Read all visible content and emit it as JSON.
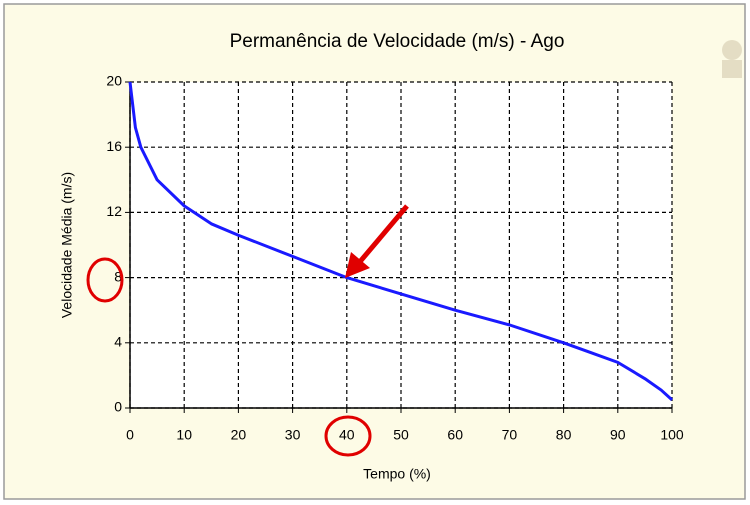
{
  "chart_data": {
    "type": "line",
    "title": "Permanência de Velocidade (m/s) - Ago",
    "x_label": "Tempo (%)",
    "y_label": "Velocidade Média (m/s)",
    "x": [
      0,
      1,
      2,
      5,
      10,
      15,
      20,
      30,
      40,
      50,
      60,
      70,
      80,
      85,
      90,
      95,
      98,
      100
    ],
    "values": [
      20,
      17.2,
      16,
      14,
      12.4,
      11.3,
      10.6,
      9.3,
      8,
      7,
      6,
      5.1,
      4,
      3.4,
      2.8,
      1.8,
      1.1,
      0.5
    ],
    "color": "#1a1aff",
    "xlim": [
      0,
      100
    ],
    "xticks": [
      0,
      10,
      20,
      30,
      40,
      50,
      60,
      70,
      80,
      90,
      100
    ],
    "ylim": [
      0,
      20
    ],
    "yticks": [
      0,
      4,
      8,
      12,
      16,
      20
    ],
    "grid": true
  }
}
